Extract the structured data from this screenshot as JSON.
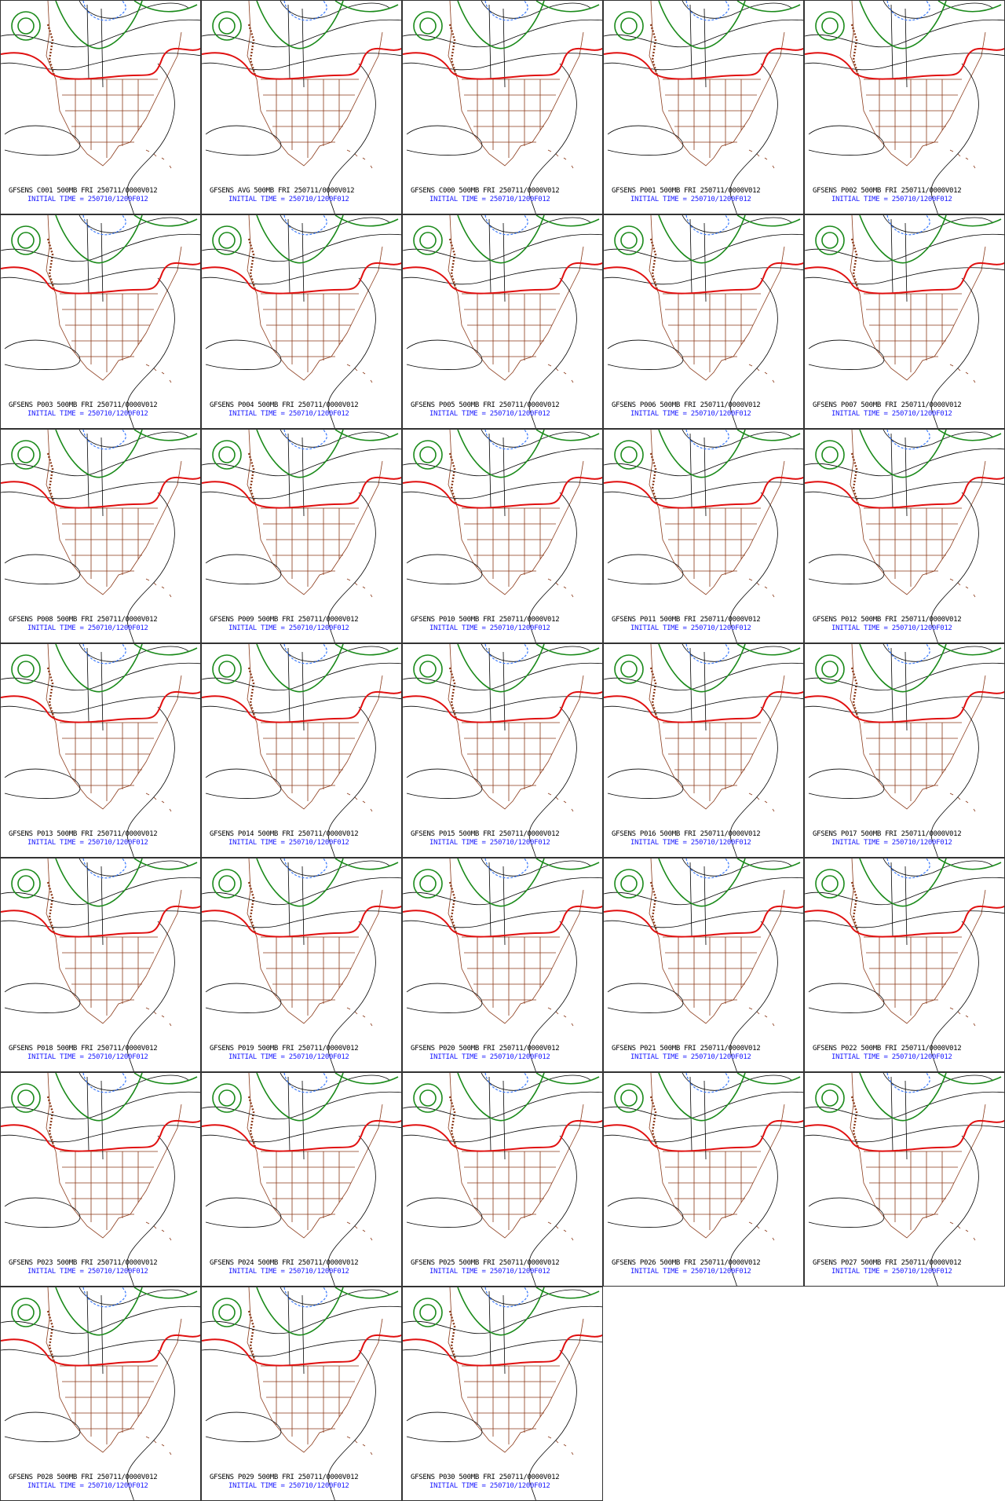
{
  "panels": [
    {
      "title": "GFSENS C001 500MB FRI 250711/0000V012",
      "init": "INITIAL TIME = 250710/1200F012"
    },
    {
      "title": "GFSENS AVG 500MB FRI 250711/0000V012",
      "init": "INITIAL TIME = 250710/1200F012"
    },
    {
      "title": "GFSENS C000 500MB FRI 250711/0000V012",
      "init": "INITIAL TIME = 250710/1200F012"
    },
    {
      "title": "GFSENS P001 500MB FRI 250711/0000V012",
      "init": "INITIAL TIME = 250710/1200F012"
    },
    {
      "title": "GFSENS P002 500MB FRI 250711/0000V012",
      "init": "INITIAL TIME = 250710/1200F012"
    },
    {
      "title": "GFSENS P003 500MB FRI 250711/0000V012",
      "init": "INITIAL TIME = 250710/1200F012"
    },
    {
      "title": "GFSENS P004 500MB FRI 250711/0000V012",
      "init": "INITIAL TIME = 250710/1200F012"
    },
    {
      "title": "GFSENS P005 500MB FRI 250711/0000V012",
      "init": "INITIAL TIME = 250710/1200F012"
    },
    {
      "title": "GFSENS P006 500MB FRI 250711/0000V012",
      "init": "INITIAL TIME = 250710/1200F012"
    },
    {
      "title": "GFSENS P007 500MB FRI 250711/0000V012",
      "init": "INITIAL TIME = 250710/1200F012"
    },
    {
      "title": "GFSENS P008 500MB FRI 250711/0000V012",
      "init": "INITIAL TIME = 250710/1200F012"
    },
    {
      "title": "GFSENS P009 500MB FRI 250711/0000V012",
      "init": "INITIAL TIME = 250710/1200F012"
    },
    {
      "title": "GFSENS P010 500MB FRI 250711/0000V012",
      "init": "INITIAL TIME = 250710/1200F012"
    },
    {
      "title": "GFSENS P011 500MB FRI 250711/0000V012",
      "init": "INITIAL TIME = 250710/1200F012"
    },
    {
      "title": "GFSENS P012 500MB FRI 250711/0000V012",
      "init": "INITIAL TIME = 250710/1200F012"
    },
    {
      "title": "GFSENS P013 500MB FRI 250711/0000V012",
      "init": "INITIAL TIME = 250710/1200F012"
    },
    {
      "title": "GFSENS P014 500MB FRI 250711/0000V012",
      "init": "INITIAL TIME = 250710/1200F012"
    },
    {
      "title": "GFSENS P015 500MB FRI 250711/0000V012",
      "init": "INITIAL TIME = 250710/1200F012"
    },
    {
      "title": "GFSENS P016 500MB FRI 250711/0000V012",
      "init": "INITIAL TIME = 250710/1200F012"
    },
    {
      "title": "GFSENS P017 500MB FRI 250711/0000V012",
      "init": "INITIAL TIME = 250710/1200F012"
    },
    {
      "title": "GFSENS P018 500MB FRI 250711/0000V012",
      "init": "INITIAL TIME = 250710/1200F012"
    },
    {
      "title": "GFSENS P019 500MB FRI 250711/0000V012",
      "init": "INITIAL TIME = 250710/1200F012"
    },
    {
      "title": "GFSENS P020 500MB FRI 250711/0000V012",
      "init": "INITIAL TIME = 250710/1200F012"
    },
    {
      "title": "GFSENS P021 500MB FRI 250711/0000V012",
      "init": "INITIAL TIME = 250710/1200F012"
    },
    {
      "title": "GFSENS P022 500MB FRI 250711/0000V012",
      "init": "INITIAL TIME = 250710/1200F012"
    },
    {
      "title": "GFSENS P023 500MB FRI 250711/0000V012",
      "init": "INITIAL TIME = 250710/1200F012"
    },
    {
      "title": "GFSENS P024 500MB FRI 250711/0000V012",
      "init": "INITIAL TIME = 250710/1200F012"
    },
    {
      "title": "GFSENS P025 500MB FRI 250711/0000V012",
      "init": "INITIAL TIME = 250710/1200F012"
    },
    {
      "title": "GFSENS P026 500MB FRI 250711/0000V012",
      "init": "INITIAL TIME = 250710/1200F012"
    },
    {
      "title": "GFSENS P027 500MB FRI 250711/0000V012",
      "init": "INITIAL TIME = 250710/1200F012"
    },
    {
      "title": "GFSENS P028 500MB FRI 250711/0000V012",
      "init": "INITIAL TIME = 250710/1200F012"
    },
    {
      "title": "GFSENS P029 500MB FRI 250711/0000V012",
      "init": "INITIAL TIME = 250710/1200F012"
    },
    {
      "title": "GFSENS P030 500MB FRI 250711/0000V012",
      "init": "INITIAL TIME = 250710/1200F012"
    }
  ]
}
